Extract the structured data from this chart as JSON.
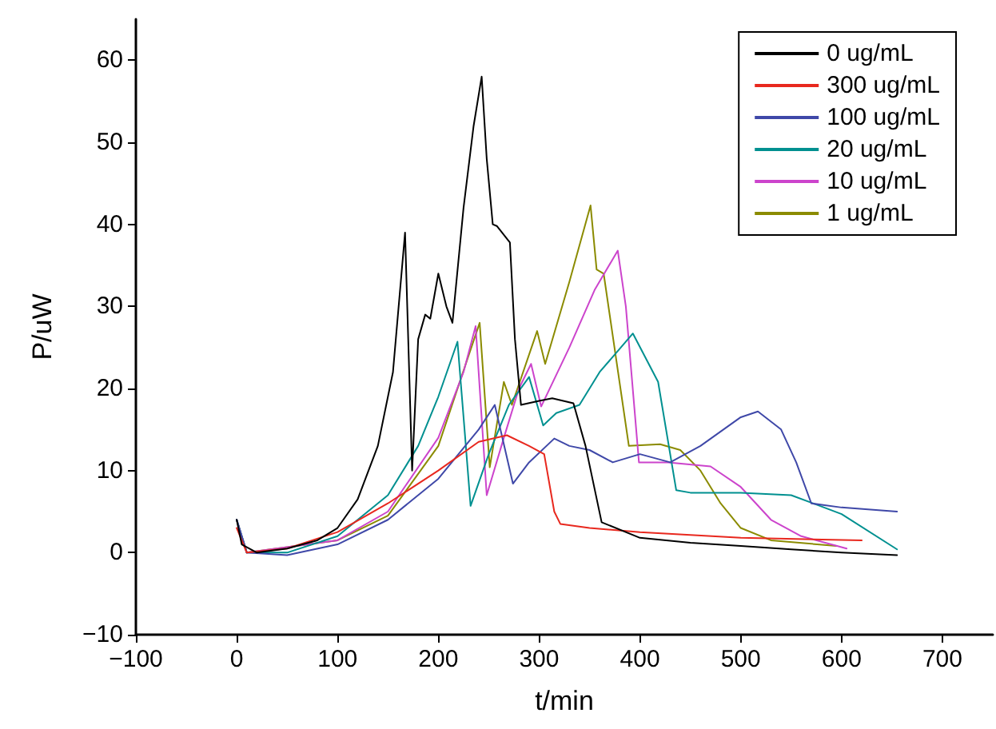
{
  "chart_data": {
    "type": "line",
    "xlabel": "t/min",
    "ylabel": "P/uW",
    "xlim": [
      -100,
      750
    ],
    "xticks": [
      -100,
      0,
      100,
      200,
      300,
      400,
      500,
      600,
      700
    ],
    "ylim": [
      -10,
      65
    ],
    "yticks": [
      -10,
      0,
      10,
      20,
      30,
      40,
      50,
      60
    ],
    "grid": false,
    "legend": "top right",
    "marker": "none",
    "line_style": "solid",
    "series": [
      {
        "name": "0 ug/mL",
        "color": "#000000",
        "x": [
          0,
          5,
          20,
          50,
          80,
          100,
          120,
          140,
          155,
          167,
          174,
          180,
          187,
          192,
          200,
          208,
          214,
          225,
          235,
          243,
          248,
          254,
          258,
          271,
          276,
          282,
          300,
          313,
          334,
          346,
          362,
          400,
          450,
          500,
          550,
          600,
          655
        ],
        "values": [
          4,
          1,
          0,
          0.5,
          1.5,
          3,
          6.5,
          13,
          22,
          39,
          10,
          26,
          29,
          28.5,
          34,
          30,
          28,
          42,
          52,
          58,
          48,
          40,
          39.8,
          37.8,
          26,
          18,
          18.5,
          18.8,
          18.2,
          13,
          3.7,
          1.8,
          1.2,
          0.8,
          0.4,
          0,
          -0.3
        ]
      },
      {
        "name": "300 ug/mL",
        "color": "#e8281e",
        "x": [
          0,
          10,
          50,
          100,
          150,
          200,
          240,
          268,
          290,
          305,
          315,
          321,
          350,
          400,
          500,
          620
        ],
        "values": [
          3,
          0,
          0.5,
          2.5,
          6,
          10,
          13.5,
          14.3,
          13,
          12,
          5,
          3.5,
          3,
          2.5,
          1.8,
          1.5
        ]
      },
      {
        "name": "100 ug/mL",
        "color": "#3f48a8",
        "x": [
          0,
          10,
          50,
          100,
          150,
          200,
          240,
          256,
          274,
          290,
          315,
          330,
          350,
          373,
          400,
          430,
          460,
          500,
          517,
          540,
          555,
          570,
          600,
          655
        ],
        "values": [
          4,
          0,
          -0.3,
          1,
          4,
          9,
          15,
          18,
          8.4,
          11,
          13.9,
          13,
          12.5,
          11,
          12,
          11,
          13,
          16.5,
          17.2,
          15,
          11,
          6,
          5.5,
          5
        ]
      },
      {
        "name": "20 ug/mL",
        "color": "#009090",
        "x": [
          0,
          10,
          50,
          100,
          150,
          180,
          200,
          219,
          226,
          232,
          250,
          270,
          290,
          304,
          317,
          340,
          360,
          393,
          418,
          436,
          450,
          500,
          550,
          600,
          655
        ],
        "values": [
          4,
          0,
          0,
          2,
          7,
          13,
          19,
          25.7,
          15,
          5.7,
          12,
          18,
          21.4,
          15.5,
          17,
          18,
          22,
          26.7,
          20.8,
          7.6,
          7.3,
          7.3,
          7,
          4.7,
          0.4
        ]
      },
      {
        "name": "10 ug/mL",
        "color": "#cc44cc",
        "x": [
          0,
          10,
          100,
          150,
          200,
          225,
          237,
          248,
          265,
          280,
          292,
          302,
          330,
          355,
          378,
          386,
          399,
          428,
          470,
          500,
          530,
          560,
          605
        ],
        "values": [
          4,
          0,
          1.5,
          5,
          14,
          22,
          27.6,
          7,
          14,
          20,
          23,
          17.8,
          25,
          32,
          36.8,
          30,
          11,
          11,
          10.5,
          8,
          4,
          2,
          0.5
        ]
      },
      {
        "name": "1 ug/mL",
        "color": "#8b8b00",
        "x": [
          0,
          10,
          100,
          150,
          200,
          230,
          241,
          251,
          265,
          273,
          298,
          306,
          330,
          351,
          357,
          364,
          389,
          420,
          440,
          460,
          480,
          500,
          530,
          595
        ],
        "values": [
          4,
          0,
          1.5,
          4.5,
          13,
          24,
          28,
          10.4,
          20.8,
          18,
          27,
          23,
          33,
          42.3,
          34.5,
          34,
          13,
          13.2,
          12.5,
          10,
          6,
          3,
          1.5,
          0.8
        ]
      }
    ]
  }
}
